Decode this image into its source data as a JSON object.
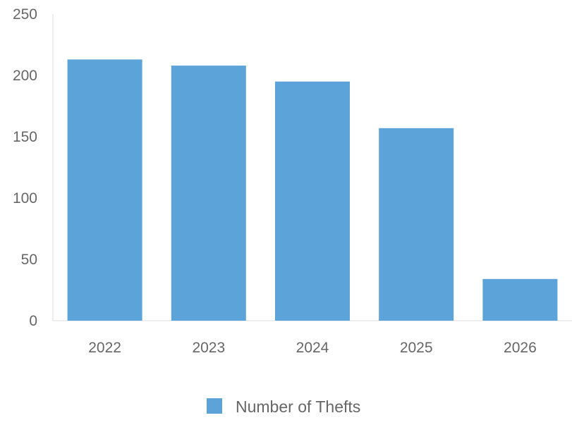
{
  "chart_data": {
    "type": "bar",
    "categories": [
      "2022",
      "2023",
      "2024",
      "2025",
      "2026"
    ],
    "series": [
      {
        "name": "Number of Thefts",
        "values": [
          213,
          208,
          195,
          157,
          34
        ]
      }
    ],
    "title": "",
    "xlabel": "",
    "ylabel": "",
    "ylim": [
      0,
      250
    ],
    "yticks": [
      0,
      50,
      100,
      150,
      200,
      250
    ],
    "grid": false,
    "legend_position": "bottom-center",
    "colors": {
      "bar": "#5ba3d9",
      "axis": "#dddddd",
      "text": "#666666"
    }
  }
}
